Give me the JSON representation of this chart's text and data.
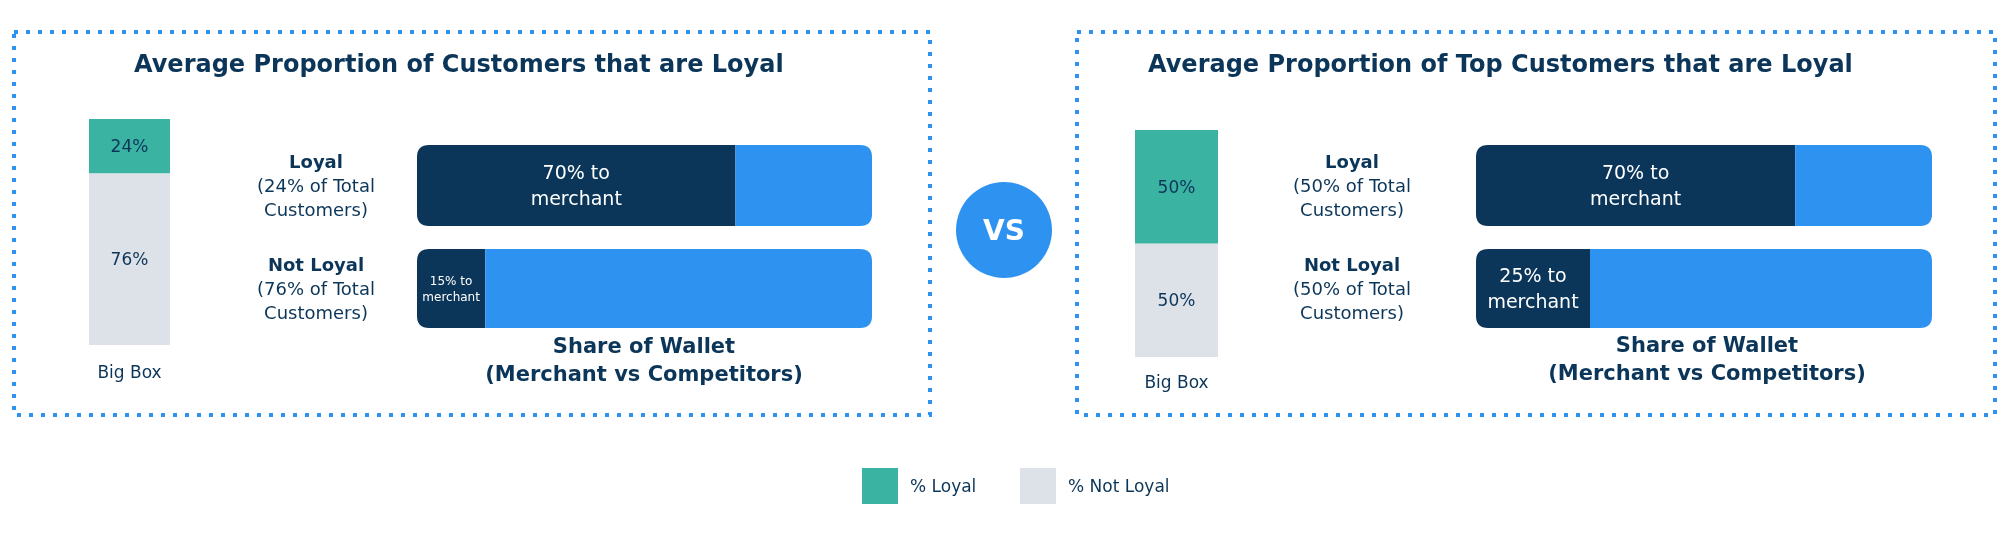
{
  "chart_data": [
    {
      "type": "bar",
      "stacked": true,
      "title": "Average Proportion of Customers that are Loyal",
      "categories": [
        "Big Box"
      ],
      "legend": "bottom",
      "series": [
        {
          "name": "% Not Loyal",
          "color": "#dde1e8",
          "values": [
            76
          ],
          "value_labels": [
            "76%"
          ]
        },
        {
          "name": "% Loyal",
          "color": "#3bb3a3",
          "values": [
            24
          ],
          "value_labels": [
            "24%"
          ]
        }
      ]
    },
    {
      "type": "bar",
      "stacked": true,
      "orientation": "horizontal",
      "xlabel": "Share of Wallet\n(Merchant vs Competitors)",
      "categories": [
        "Loyal\n(24% of Total\nCustomers)",
        "Not Loyal\n(76% of Total\nCustomers)"
      ],
      "series": [
        {
          "color": "#0c3659",
          "values": [
            70,
            15
          ],
          "value_labels": [
            "70% to merchant",
            "15% to merchant"
          ]
        },
        {
          "color": "#2e92f0",
          "values": [
            30,
            85
          ]
        }
      ]
    },
    {
      "type": "other",
      "annotations": [
        "VS"
      ]
    },
    {
      "type": "bar",
      "stacked": true,
      "title": "Average Proportion of Top Customers that are Loyal",
      "categories": [
        "Big Box"
      ],
      "series": [
        {
          "color": "#dde1e8",
          "values": [
            50
          ],
          "value_labels": [
            "50%"
          ]
        },
        {
          "color": "#3bb3a3",
          "values": [
            50
          ],
          "value_labels": [
            "50%"
          ]
        }
      ]
    },
    {
      "type": "bar",
      "stacked": true,
      "orientation": "horizontal",
      "xlabel": "Share of Wallet\n(Merchant vs Competitors)",
      "categories": [
        "Loyal\n(50% of Total\nCustomers)",
        "Not Loyal\n(50% of Total\nCustomers)"
      ],
      "series": [
        {
          "color": "#0c3659",
          "values": [
            70,
            25
          ],
          "value_labels": [
            "70% to merchant",
            "25% to merchant"
          ]
        },
        {
          "color": "#2e92f0",
          "values": [
            30,
            75
          ]
        }
      ]
    }
  ]
}
